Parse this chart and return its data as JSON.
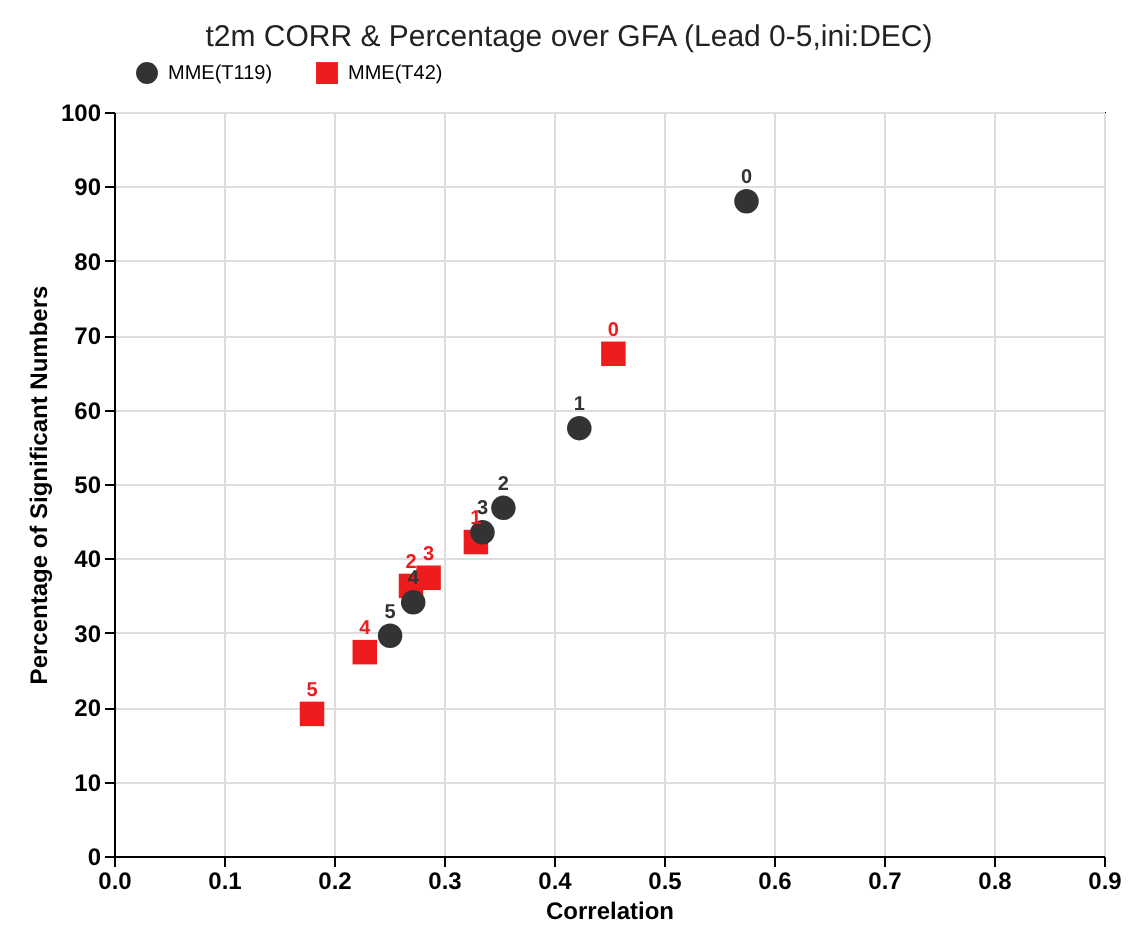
{
  "chart_data": {
    "type": "scatter",
    "title": "t2m CORR & Percentage over GFA (Lead 0-5,ini:DEC)",
    "xlabel": "Correlation",
    "ylabel": "Percentage of Significant Numbers",
    "xlim": [
      0,
      0.9
    ],
    "xticks": [
      {
        "value": 0,
        "label": "0.0"
      },
      0.1,
      0.2,
      0.3,
      0.4,
      0.5,
      0.6,
      0.7,
      0.8,
      0.9
    ],
    "ylim": [
      0,
      100
    ],
    "yticks": [
      0,
      10,
      20,
      30,
      40,
      50,
      60,
      70,
      80,
      90,
      100
    ],
    "grid": true,
    "legend": "top left",
    "series": [
      {
        "name": "MME(T119)",
        "color": "#333333",
        "marker": "circle",
        "x": [
          0.575,
          0.423,
          0.354,
          0.335,
          0.272,
          0.251
        ],
        "values": [
          88,
          57.5,
          46.8,
          43.5,
          34.1,
          29.6
        ]
      },
      {
        "name": "MME(T42)",
        "color": "#ee1c1c",
        "marker": "square",
        "x": [
          0.454,
          0.329,
          0.27,
          0.286,
          0.228,
          0.18
        ],
        "values": [
          67.5,
          42.2,
          36.3,
          37.4,
          27.4,
          19.1
        ]
      }
    ],
    "annotations": [
      {
        "text": "0",
        "x": 0.575,
        "y": 88
      },
      {
        "text": "1",
        "x": 0.423,
        "y": 57.5
      },
      {
        "text": "2",
        "x": 0.354,
        "y": 46.8
      },
      {
        "text": "3",
        "x": 0.335,
        "y": 43.5
      },
      {
        "text": "4",
        "x": 0.272,
        "y": 34.1
      },
      {
        "text": "5",
        "x": 0.251,
        "y": 29.6
      },
      {
        "text": "0",
        "x": 0.454,
        "y": 67.5
      },
      {
        "text": "1",
        "x": 0.329,
        "y": 42.2
      },
      {
        "text": "2",
        "x": 0.27,
        "y": 36.3
      },
      {
        "text": "3",
        "x": 0.286,
        "y": 37.4
      },
      {
        "text": "4",
        "x": 0.228,
        "y": 27.4
      },
      {
        "text": "5",
        "x": 0.18,
        "y": 19.1
      }
    ]
  }
}
